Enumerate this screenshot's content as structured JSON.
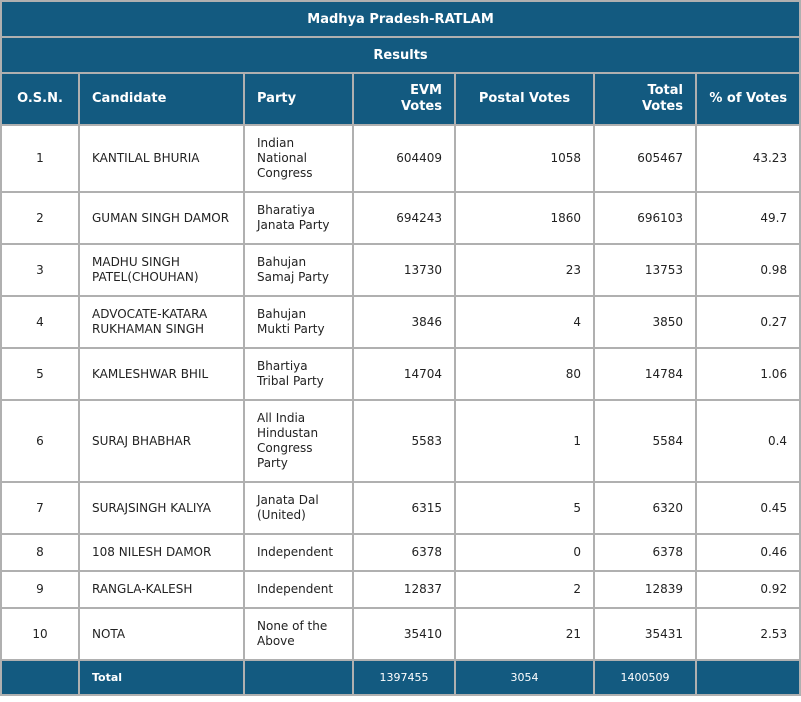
{
  "title": "Madhya Pradesh-RATLAM",
  "subtitle": "Results",
  "colors": {
    "header_bg": "#135a80",
    "header_text": "#ffffff",
    "border": "#b0b0b0"
  },
  "columns": [
    "O.S.N.",
    "Candidate",
    "Party",
    "EVM Votes",
    "Postal Votes",
    "Total Votes",
    "% of Votes"
  ],
  "rows": [
    {
      "osn": "1",
      "candidate": "KANTILAL BHURIA",
      "party": "Indian National Congress",
      "evm": "604409",
      "postal": "1058",
      "total": "605467",
      "pct": "43.23"
    },
    {
      "osn": "2",
      "candidate": "GUMAN SINGH DAMOR",
      "party": "Bharatiya Janata Party",
      "evm": "694243",
      "postal": "1860",
      "total": "696103",
      "pct": "49.7"
    },
    {
      "osn": "3",
      "candidate": "MADHU SINGH PATEL(CHOUHAN)",
      "party": "Bahujan Samaj Party",
      "evm": "13730",
      "postal": "23",
      "total": "13753",
      "pct": "0.98"
    },
    {
      "osn": "4",
      "candidate": "ADVOCATE-KATARA RUKHAMAN SINGH",
      "party": "Bahujan Mukti Party",
      "evm": "3846",
      "postal": "4",
      "total": "3850",
      "pct": "0.27"
    },
    {
      "osn": "5",
      "candidate": "KAMLESHWAR BHIL",
      "party": "Bhartiya Tribal Party",
      "evm": "14704",
      "postal": "80",
      "total": "14784",
      "pct": "1.06"
    },
    {
      "osn": "6",
      "candidate": "SURAJ BHABHAR",
      "party": "All India Hindustan Congress Party",
      "evm": "5583",
      "postal": "1",
      "total": "5584",
      "pct": "0.4"
    },
    {
      "osn": "7",
      "candidate": "SURAJSINGH KALIYA",
      "party": "Janata Dal (United)",
      "evm": "6315",
      "postal": "5",
      "total": "6320",
      "pct": "0.45"
    },
    {
      "osn": "8",
      "candidate": "108 NILESH DAMOR",
      "party": "Independent",
      "evm": "6378",
      "postal": "0",
      "total": "6378",
      "pct": "0.46"
    },
    {
      "osn": "9",
      "candidate": "RANGLA-KALESH",
      "party": "Independent",
      "evm": "12837",
      "postal": "2",
      "total": "12839",
      "pct": "0.92"
    },
    {
      "osn": "10",
      "candidate": "NOTA",
      "party": "None of the Above",
      "evm": "35410",
      "postal": "21",
      "total": "35431",
      "pct": "2.53"
    }
  ],
  "totals": {
    "label": "Total",
    "evm": "1397455",
    "postal": "3054",
    "total": "1400509"
  }
}
